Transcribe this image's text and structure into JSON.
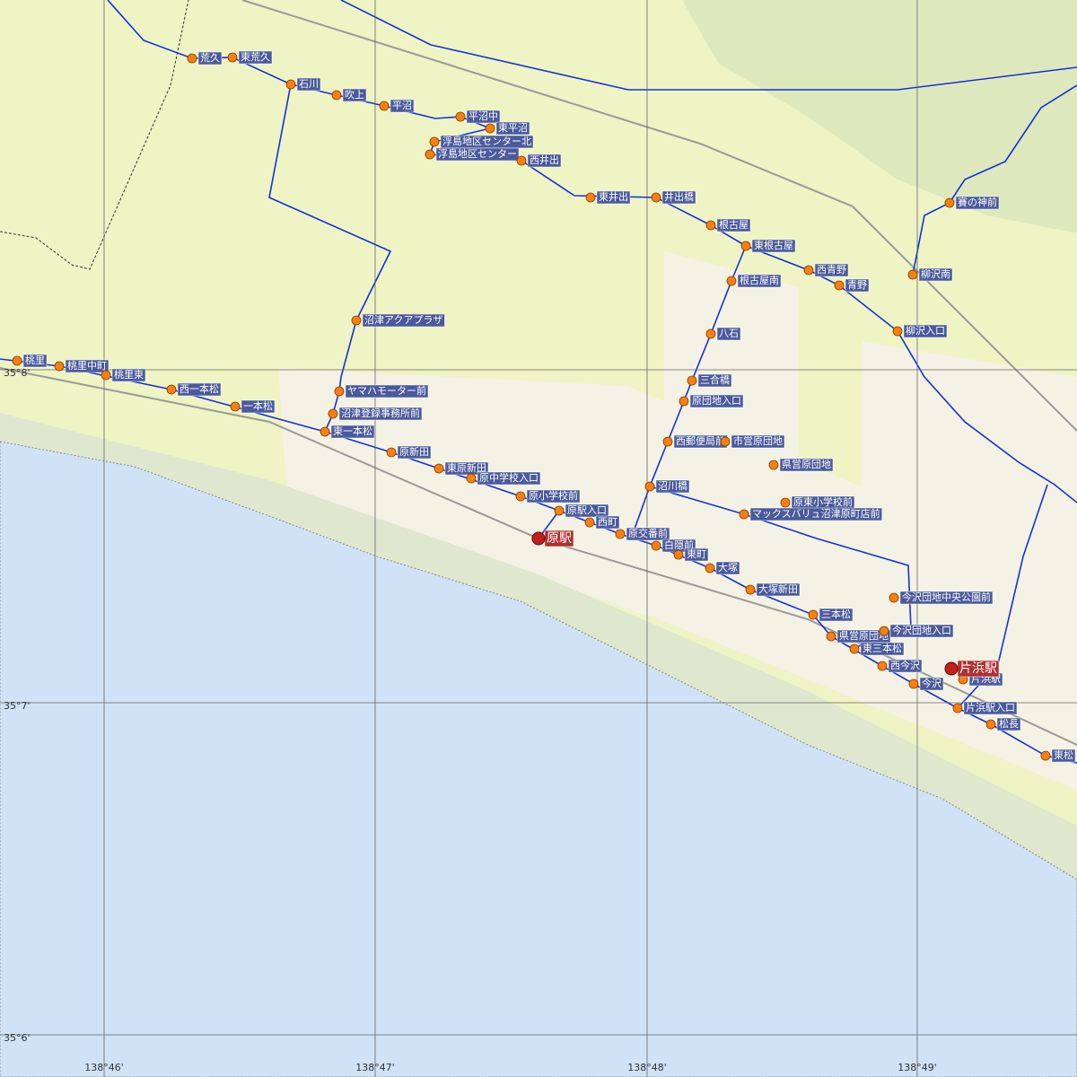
{
  "stations": [
    {
      "label": "原駅"
    },
    {
      "label": "片浜駅"
    }
  ],
  "stops": [
    {
      "label": "荒久"
    },
    {
      "label": "東荒久"
    },
    {
      "label": "石川"
    },
    {
      "label": "吹上"
    },
    {
      "label": "平沼"
    },
    {
      "label": "平沼中"
    },
    {
      "label": "東平沼"
    },
    {
      "label": "浮島地区センター北"
    },
    {
      "label": "浮島地区センター"
    },
    {
      "label": "西井出"
    },
    {
      "label": "東井出"
    },
    {
      "label": "井出橋"
    },
    {
      "label": "根古屋"
    },
    {
      "label": "東根古屋"
    },
    {
      "label": "西青野"
    },
    {
      "label": "青野"
    },
    {
      "label": "根古屋南"
    },
    {
      "label": "柳沢南"
    },
    {
      "label": "柳沢入口"
    },
    {
      "label": "賽の神前"
    },
    {
      "label": "沼津アクアプラザ"
    },
    {
      "label": "八石"
    },
    {
      "label": "三合橋"
    },
    {
      "label": "原団地入口"
    },
    {
      "label": "西郵便局前"
    },
    {
      "label": "市営原団地"
    },
    {
      "label": "県営原団地"
    },
    {
      "label": "原東小学校前"
    },
    {
      "label": "マックスバリュ沼津原町店前"
    },
    {
      "label": "沼川橋"
    },
    {
      "label": "ヤマハモーター前"
    },
    {
      "label": "沼津登録事務所前"
    },
    {
      "label": "東一本松"
    },
    {
      "label": "原新田"
    },
    {
      "label": "東原新田"
    },
    {
      "label": "原中学校入口"
    },
    {
      "label": "原小学校前"
    },
    {
      "label": "原駅入口"
    },
    {
      "label": "西町"
    },
    {
      "label": "原交番前"
    },
    {
      "label": "白隠前"
    },
    {
      "label": "東町"
    },
    {
      "label": "大塚"
    },
    {
      "label": "大塚新田"
    },
    {
      "label": "三本松"
    },
    {
      "label": "県営原団地"
    },
    {
      "label": "今沢団地入口"
    },
    {
      "label": "今沢団地中央公園前"
    },
    {
      "label": "東三本松"
    },
    {
      "label": "西今沢"
    },
    {
      "label": "今沢"
    },
    {
      "label": "片浜駅"
    },
    {
      "label": "片浜駅入口"
    },
    {
      "label": "松長"
    },
    {
      "label": "東松"
    },
    {
      "label": "桃里"
    },
    {
      "label": "桃里中町"
    },
    {
      "label": "桃里東"
    },
    {
      "label": "西一本松"
    },
    {
      "label": "一本松"
    }
  ],
  "grid": {
    "lat": [
      "35°8'",
      "35°7'",
      "35°6'"
    ],
    "lon": [
      "138°46'",
      "138°47'",
      "138°48'",
      "138°49'"
    ]
  }
}
